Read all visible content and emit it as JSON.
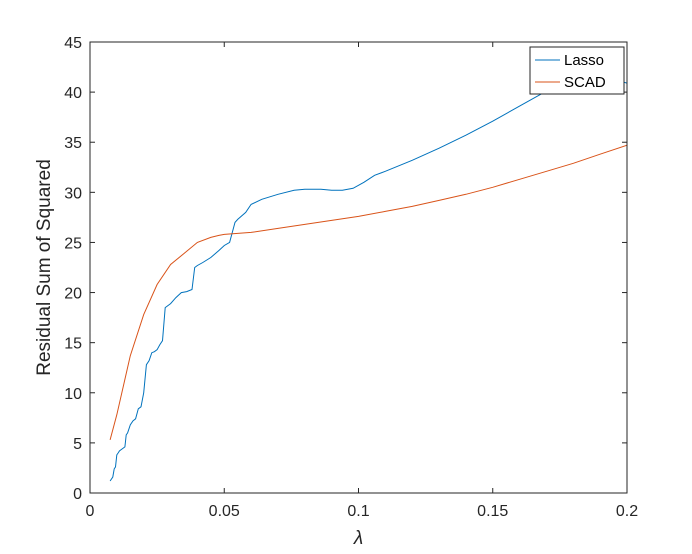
{
  "chart_data": {
    "type": "line",
    "title": "",
    "xlabel": "λ",
    "ylabel": "Residual Sum of Squared",
    "xlim": [
      0,
      0.2
    ],
    "ylim": [
      0,
      45
    ],
    "xticks": [
      0,
      0.05,
      0.1,
      0.15,
      0.2
    ],
    "xtick_labels": [
      "0",
      "0.05",
      "0.1",
      "0.15",
      "0.2"
    ],
    "yticks": [
      0,
      5,
      10,
      15,
      20,
      25,
      30,
      35,
      40,
      45
    ],
    "ytick_labels": [
      "0",
      "5",
      "10",
      "15",
      "20",
      "25",
      "30",
      "35",
      "40",
      "45"
    ],
    "grid": false,
    "legend_position": "top-right",
    "series": [
      {
        "name": "Lasso",
        "color": "#0072BD",
        "x": [
          0.0075,
          0.0085,
          0.009,
          0.0095,
          0.01,
          0.0105,
          0.011,
          0.012,
          0.013,
          0.0135,
          0.014,
          0.015,
          0.016,
          0.017,
          0.018,
          0.019,
          0.02,
          0.021,
          0.022,
          0.023,
          0.024,
          0.025,
          0.026,
          0.027,
          0.028,
          0.029,
          0.03,
          0.032,
          0.034,
          0.036,
          0.038,
          0.039,
          0.04,
          0.042,
          0.045,
          0.048,
          0.05,
          0.052,
          0.054,
          0.055,
          0.058,
          0.06,
          0.064,
          0.07,
          0.076,
          0.08,
          0.086,
          0.09,
          0.094,
          0.098,
          0.102,
          0.106,
          0.11,
          0.12,
          0.13,
          0.14,
          0.15,
          0.16,
          0.17,
          0.18,
          0.1857,
          0.19,
          0.195,
          0.2
        ],
        "y": [
          1.2,
          1.6,
          2.4,
          2.6,
          3.8,
          4.0,
          4.2,
          4.4,
          4.6,
          5.8,
          6.0,
          6.8,
          7.2,
          7.4,
          8.4,
          8.6,
          10.0,
          12.8,
          13.2,
          14.0,
          14.1,
          14.3,
          14.8,
          15.2,
          18.5,
          18.7,
          18.9,
          19.5,
          20.0,
          20.1,
          20.3,
          22.5,
          22.7,
          23.0,
          23.5,
          24.2,
          24.7,
          25.0,
          27.0,
          27.3,
          28.0,
          28.8,
          29.3,
          29.8,
          30.2,
          30.3,
          30.3,
          30.2,
          30.2,
          30.4,
          31.0,
          31.7,
          32.1,
          33.2,
          34.4,
          35.7,
          37.1,
          38.6,
          40.1,
          41.6,
          42.0,
          41.7,
          41.3,
          40.9
        ]
      },
      {
        "name": "SCAD",
        "color": "#D95319",
        "x": [
          0.0075,
          0.01,
          0.015,
          0.02,
          0.025,
          0.03,
          0.035,
          0.04,
          0.045,
          0.048,
          0.05,
          0.055,
          0.06,
          0.07,
          0.08,
          0.09,
          0.1,
          0.11,
          0.12,
          0.13,
          0.14,
          0.15,
          0.16,
          0.17,
          0.18,
          0.19,
          0.2
        ],
        "y": [
          5.3,
          7.8,
          13.7,
          17.8,
          20.8,
          22.8,
          23.9,
          25.0,
          25.5,
          25.7,
          25.8,
          25.9,
          26.0,
          26.4,
          26.8,
          27.2,
          27.6,
          28.1,
          28.6,
          29.2,
          29.8,
          30.5,
          31.3,
          32.1,
          32.9,
          33.8,
          34.7
        ]
      }
    ]
  }
}
